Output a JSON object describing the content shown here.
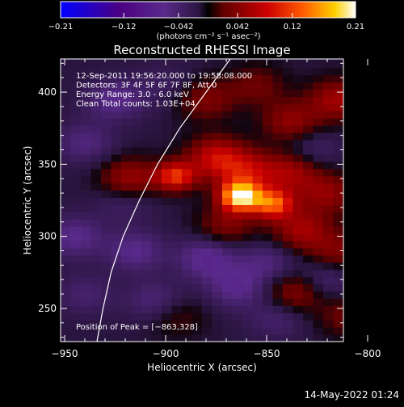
{
  "chart_data": {
    "type": "heatmap",
    "title": "Reconstructed RHESSI Image",
    "xlabel": "Heliocentric X (arcsec)",
    "ylabel": "Heliocentric Y (arcsec)",
    "xlim": [
      -952,
      -812
    ],
    "ylim": [
      227,
      423
    ],
    "x_ticks": [
      {
        "value": -950,
        "label": "−950"
      },
      {
        "value": -900,
        "label": "−900"
      },
      {
        "value": -850,
        "label": "−850"
      },
      {
        "value": -800,
        "label": "−800"
      }
    ],
    "y_ticks": [
      {
        "value": 250,
        "label": "250"
      },
      {
        "value": 300,
        "label": "300"
      },
      {
        "value": 350,
        "label": "350"
      },
      {
        "value": 400,
        "label": "400"
      }
    ],
    "colorbar": {
      "min": -0.21,
      "max": 0.21,
      "ticks": [
        {
          "value": -0.21,
          "label": "−0.21"
        },
        {
          "value": -0.12,
          "label": "−0.12"
        },
        {
          "value": -0.042,
          "label": "−0.042"
        },
        {
          "value": 0.042,
          "label": "0.042"
        },
        {
          "value": 0.12,
          "label": "0.12"
        },
        {
          "value": 0.21,
          "label": "0.21"
        }
      ],
      "unit_label": "(photons cm⁻² s⁻¹ asec⁻²)"
    },
    "annotations": [
      "12-Sep-2011 19:56:20.000 to 19:58:08.000",
      "Detectors: 3F 4F 5F 6F 7F 8F, Att 0",
      "Energy Range: 3.0 - 6.0 keV",
      "Clean     Total counts: 1.03E+04"
    ],
    "peak_label": "Position of Peak = [−863,328]",
    "peak": {
      "x": -863,
      "y": 328,
      "value": 0.21
    },
    "sources": [
      {
        "x": -863,
        "y": 328,
        "value": 0.21
      },
      {
        "x": -847,
        "y": 323,
        "value": 0.14
      },
      {
        "x": -895,
        "y": 342,
        "value": 0.12
      },
      {
        "x": -918,
        "y": 340,
        "value": 0.07
      },
      {
        "x": -875,
        "y": 355,
        "value": 0.09
      },
      {
        "x": -860,
        "y": 345,
        "value": 0.08
      },
      {
        "x": -838,
        "y": 345,
        "value": 0.07
      },
      {
        "x": -833,
        "y": 305,
        "value": 0.07
      },
      {
        "x": -820,
        "y": 330,
        "value": 0.06
      },
      {
        "x": -870,
        "y": 308,
        "value": 0.05
      },
      {
        "x": -880,
        "y": 395,
        "value": 0.05
      },
      {
        "x": -855,
        "y": 405,
        "value": 0.04
      },
      {
        "x": -838,
        "y": 380,
        "value": 0.06
      },
      {
        "x": -815,
        "y": 395,
        "value": 0.07
      },
      {
        "x": -835,
        "y": 262,
        "value": 0.06
      },
      {
        "x": -815,
        "y": 290,
        "value": 0.05
      },
      {
        "x": -895,
        "y": 245,
        "value": 0.03
      },
      {
        "x": -810,
        "y": 245,
        "value": 0.04
      },
      {
        "x": -940,
        "y": 365,
        "value": -0.04
      },
      {
        "x": -925,
        "y": 395,
        "value": -0.05
      },
      {
        "x": -900,
        "y": 405,
        "value": -0.02
      },
      {
        "x": -945,
        "y": 300,
        "value": -0.05
      },
      {
        "x": -940,
        "y": 260,
        "value": -0.03
      },
      {
        "x": -915,
        "y": 290,
        "value": -0.05
      },
      {
        "x": -905,
        "y": 255,
        "value": -0.04
      },
      {
        "x": -880,
        "y": 285,
        "value": -0.06
      },
      {
        "x": -865,
        "y": 265,
        "value": -0.05
      },
      {
        "x": -850,
        "y": 282,
        "value": -0.04
      },
      {
        "x": -845,
        "y": 243,
        "value": -0.03
      },
      {
        "x": -822,
        "y": 270,
        "value": -0.04
      },
      {
        "x": -828,
        "y": 360,
        "value": -0.03
      },
      {
        "x": -920,
        "y": 325,
        "value": -0.03
      }
    ],
    "limb": [
      {
        "x": -868,
        "y": 423
      },
      {
        "x": -880,
        "y": 400
      },
      {
        "x": -893,
        "y": 375
      },
      {
        "x": -904,
        "y": 350
      },
      {
        "x": -913,
        "y": 325
      },
      {
        "x": -921,
        "y": 300
      },
      {
        "x": -927,
        "y": 275
      },
      {
        "x": -931,
        "y": 250
      },
      {
        "x": -934,
        "y": 227
      }
    ]
  },
  "footer": {
    "timestamp": "14-May-2022 01:24"
  },
  "colors": {
    "background": "#000000",
    "axis": "#ffffff",
    "colormap": [
      "#0000ff",
      "#4b0082",
      "#5a2a8c",
      "#3c1f5c",
      "#000000",
      "#600000",
      "#cc0000",
      "#ff5a00",
      "#ffd000",
      "#ffffff"
    ]
  }
}
